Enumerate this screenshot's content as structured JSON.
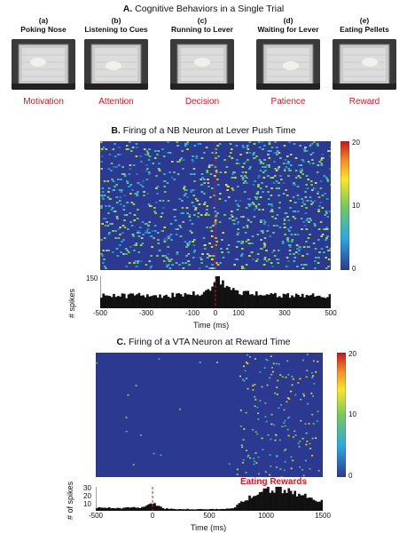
{
  "panelA": {
    "title_letter": "A.",
    "title_text": "Cognitive Behaviors in a Single Trial",
    "steps": [
      {
        "tag": "(a)",
        "label": "Poking Nose",
        "concept": "Motivation"
      },
      {
        "tag": "(b)",
        "label": "Listening to Cues",
        "concept": "Attention"
      },
      {
        "tag": "(c)",
        "label": "Running to Lever",
        "concept": "Decision"
      },
      {
        "tag": "(d)",
        "label": "Waiting for Lever",
        "concept": "Patience"
      },
      {
        "tag": "(e)",
        "label": "Eating Pellets",
        "concept": "Reward"
      }
    ]
  },
  "panelB": {
    "title_letter": "B.",
    "title_text": "Firing of a NB Neuron at Lever Push Time",
    "colorbar_ticks": [
      "20",
      "10",
      "0"
    ],
    "hist_ylabel": "# spikes",
    "hist_ytick": "150",
    "xticks": [
      "-500",
      "-300",
      "-100",
      "0",
      "100",
      "300",
      "500"
    ],
    "xlabel": "Time (ms)"
  },
  "panelC": {
    "title_letter": "C.",
    "title_text": "Firing of a VTA Neuron at Reward Time",
    "colorbar_ticks": [
      "20",
      "10",
      "0"
    ],
    "hist_ylabel": "# of spikes",
    "hist_yticks": [
      "30",
      "20",
      "10"
    ],
    "annotation": "Eating Rewards",
    "xticks": [
      "-500",
      "0",
      "500",
      "1000",
      "1500"
    ],
    "xlabel": "Time (ms)"
  },
  "colors": {
    "accent_red": "#e0141e",
    "raster_bg": "#2b3990"
  },
  "chart_data": [
    {
      "type": "heatmap",
      "title": "Firing of a NB Neuron at Lever Push Time",
      "xlabel": "Time (ms)",
      "xlim": [
        -500,
        500
      ],
      "colorbar_range": [
        0,
        20
      ],
      "marker_x": 0
    },
    {
      "type": "bar",
      "title": "",
      "ylabel": "# spikes",
      "xlabel": "Time (ms)",
      "xlim": [
        -500,
        500
      ],
      "ylim": [
        0,
        150
      ],
      "x": [
        -500,
        -450,
        -400,
        -350,
        -300,
        -250,
        -200,
        -150,
        -100,
        -50,
        -20,
        0,
        20,
        50,
        100,
        150,
        200,
        250,
        300,
        350,
        400,
        450,
        500
      ],
      "values": [
        62,
        60,
        58,
        60,
        62,
        58,
        60,
        62,
        66,
        72,
        90,
        150,
        120,
        95,
        80,
        70,
        66,
        62,
        60,
        58,
        60,
        58,
        60
      ]
    },
    {
      "type": "heatmap",
      "title": "Firing of a VTA Neuron at Reward Time",
      "xlabel": "Time (ms)",
      "xlim": [
        -500,
        1500
      ],
      "colorbar_range": [
        0,
        20
      ],
      "annotation": "Eating Rewards"
    },
    {
      "type": "bar",
      "title": "",
      "ylabel": "# of spikes",
      "xlabel": "Time (ms)",
      "xlim": [
        -500,
        1500
      ],
      "ylim": [
        0,
        30
      ],
      "x": [
        -500,
        -400,
        -300,
        -200,
        -100,
        0,
        100,
        200,
        300,
        400,
        500,
        600,
        700,
        800,
        900,
        1000,
        1100,
        1200,
        1300,
        1400,
        1500
      ],
      "values": [
        4,
        4,
        3,
        4,
        4,
        10,
        3,
        2,
        2,
        2,
        2,
        2,
        3,
        12,
        20,
        26,
        28,
        24,
        20,
        16,
        12
      ]
    }
  ]
}
